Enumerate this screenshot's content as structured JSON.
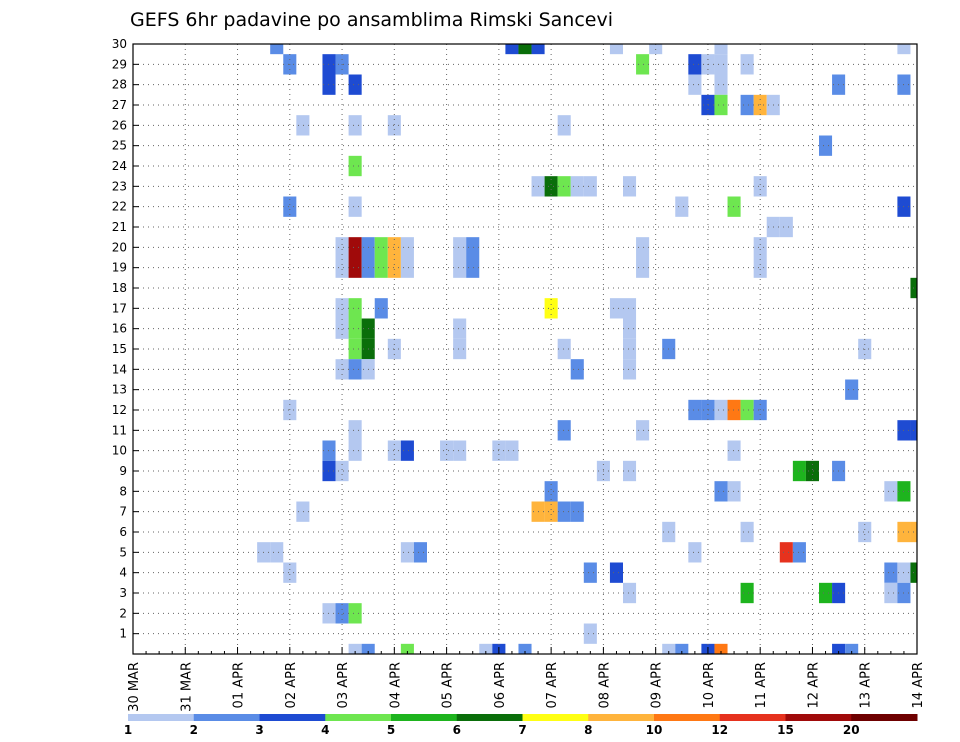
{
  "chart_data": {
    "type": "heatmap",
    "title": "GEFS 6hr padavine po ansamblima Rimski Sancevi",
    "y_ticks": [
      "1",
      "2",
      "3",
      "4",
      "5",
      "6",
      "7",
      "8",
      "9",
      "10",
      "11",
      "12",
      "13",
      "14",
      "15",
      "16",
      "17",
      "18",
      "19",
      "20",
      "21",
      "22",
      "23",
      "24",
      "25",
      "26",
      "27",
      "28",
      "29",
      "30"
    ],
    "x_ticks": [
      "30 MAR",
      "31 MAR",
      "01 APR",
      "02 APR",
      "03 APR",
      "04 APR",
      "05 APR",
      "06 APR",
      "07 APR",
      "08 APR",
      "09 APR",
      "10 APR",
      "11 APR",
      "12 APR",
      "13 APR",
      "14 APR"
    ],
    "x_range_steps": [
      0,
      60
    ],
    "y_range": [
      0,
      30
    ],
    "grid": true,
    "colorbar": {
      "labels": [
        "1",
        "2",
        "3",
        "4",
        "5",
        "6",
        "7",
        "8",
        "10",
        "12",
        "15",
        "20"
      ],
      "colors": [
        "#b4c8f0",
        "#5a8ce6",
        "#1e4bd2",
        "#6ee650",
        "#1eb41e",
        "#0a6e0a",
        "#ffff14",
        "#ffb43c",
        "#ff7814",
        "#e6321e",
        "#a00a0a",
        "#6e0000"
      ]
    },
    "value_encoding": "colorbar class index 0-11",
    "cells": [
      [
        11,
        30,
        1
      ],
      [
        29,
        30,
        2
      ],
      [
        30,
        30,
        5
      ],
      [
        31,
        30,
        2
      ],
      [
        37,
        30,
        0
      ],
      [
        40,
        30,
        0
      ],
      [
        45,
        30,
        0
      ],
      [
        59,
        30,
        0
      ],
      [
        12,
        29,
        1
      ],
      [
        15,
        29,
        2
      ],
      [
        16,
        29,
        1
      ],
      [
        39,
        29,
        3
      ],
      [
        43,
        29,
        2
      ],
      [
        44,
        29,
        0
      ],
      [
        45,
        29,
        0
      ],
      [
        47,
        29,
        0
      ],
      [
        15,
        28,
        2
      ],
      [
        17,
        28,
        2
      ],
      [
        43,
        28,
        0
      ],
      [
        45,
        28,
        0
      ],
      [
        54,
        28,
        1
      ],
      [
        59,
        28,
        1
      ],
      [
        44,
        27,
        2
      ],
      [
        45,
        27,
        3
      ],
      [
        47,
        27,
        1
      ],
      [
        48,
        27,
        7
      ],
      [
        49,
        27,
        0
      ],
      [
        13,
        26,
        0
      ],
      [
        17,
        26,
        0
      ],
      [
        20,
        26,
        0
      ],
      [
        33,
        26,
        0
      ],
      [
        53,
        25,
        1
      ],
      [
        17,
        24,
        3
      ],
      [
        31,
        23,
        0
      ],
      [
        32,
        23,
        5
      ],
      [
        33,
        23,
        3
      ],
      [
        34,
        23,
        0
      ],
      [
        35,
        23,
        0
      ],
      [
        38,
        23,
        0
      ],
      [
        48,
        23,
        0
      ],
      [
        12,
        22,
        1
      ],
      [
        17,
        22,
        0
      ],
      [
        42,
        22,
        0
      ],
      [
        46,
        22,
        3
      ],
      [
        59,
        22,
        2
      ],
      [
        49,
        21,
        0
      ],
      [
        50,
        21,
        0
      ],
      [
        16,
        20,
        0
      ],
      [
        17,
        20,
        10
      ],
      [
        18,
        20,
        1
      ],
      [
        19,
        20,
        3
      ],
      [
        20,
        20,
        7
      ],
      [
        21,
        20,
        0
      ],
      [
        25,
        20,
        0
      ],
      [
        26,
        20,
        1
      ],
      [
        39,
        20,
        0
      ],
      [
        48,
        20,
        0
      ],
      [
        16,
        19,
        0
      ],
      [
        17,
        19,
        10
      ],
      [
        18,
        19,
        1
      ],
      [
        19,
        19,
        3
      ],
      [
        20,
        19,
        7
      ],
      [
        21,
        19,
        0
      ],
      [
        25,
        19,
        0
      ],
      [
        26,
        19,
        1
      ],
      [
        39,
        19,
        0
      ],
      [
        48,
        19,
        0
      ],
      [
        60,
        18,
        5
      ],
      [
        16,
        17,
        0
      ],
      [
        17,
        17,
        3
      ],
      [
        19,
        17,
        1
      ],
      [
        32,
        17,
        6
      ],
      [
        37,
        17,
        0
      ],
      [
        38,
        17,
        0
      ],
      [
        16,
        16,
        0
      ],
      [
        17,
        16,
        3
      ],
      [
        18,
        16,
        5
      ],
      [
        25,
        16,
        0
      ],
      [
        38,
        16,
        0
      ],
      [
        17,
        15,
        3
      ],
      [
        18,
        15,
        5
      ],
      [
        20,
        15,
        0
      ],
      [
        25,
        15,
        0
      ],
      [
        33,
        15,
        0
      ],
      [
        38,
        15,
        0
      ],
      [
        41,
        15,
        1
      ],
      [
        56,
        15,
        0
      ],
      [
        16,
        14,
        0
      ],
      [
        17,
        14,
        1
      ],
      [
        18,
        14,
        0
      ],
      [
        34,
        14,
        1
      ],
      [
        38,
        14,
        0
      ],
      [
        55,
        13,
        1
      ],
      [
        12,
        12,
        0
      ],
      [
        43,
        12,
        1
      ],
      [
        44,
        12,
        1
      ],
      [
        45,
        12,
        0
      ],
      [
        46,
        12,
        8
      ],
      [
        47,
        12,
        3
      ],
      [
        48,
        12,
        1
      ],
      [
        17,
        11,
        0
      ],
      [
        33,
        11,
        1
      ],
      [
        39,
        11,
        0
      ],
      [
        59,
        11,
        2
      ],
      [
        60,
        11,
        2
      ],
      [
        15,
        10,
        1
      ],
      [
        17,
        10,
        0
      ],
      [
        20,
        10,
        0
      ],
      [
        21,
        10,
        2
      ],
      [
        24,
        10,
        0
      ],
      [
        25,
        10,
        0
      ],
      [
        28,
        10,
        0
      ],
      [
        29,
        10,
        0
      ],
      [
        46,
        10,
        0
      ],
      [
        15,
        9,
        2
      ],
      [
        16,
        9,
        0
      ],
      [
        36,
        9,
        0
      ],
      [
        38,
        9,
        0
      ],
      [
        51,
        9,
        4
      ],
      [
        52,
        9,
        5
      ],
      [
        54,
        9,
        1
      ],
      [
        32,
        8,
        1
      ],
      [
        45,
        8,
        1
      ],
      [
        46,
        8,
        0
      ],
      [
        58,
        8,
        0
      ],
      [
        59,
        8,
        4
      ],
      [
        13,
        7,
        0
      ],
      [
        31,
        7,
        7
      ],
      [
        32,
        7,
        7
      ],
      [
        33,
        7,
        1
      ],
      [
        34,
        7,
        1
      ],
      [
        41,
        6,
        0
      ],
      [
        47,
        6,
        0
      ],
      [
        56,
        6,
        0
      ],
      [
        59,
        6,
        7
      ],
      [
        60,
        6,
        7
      ],
      [
        10,
        5,
        0
      ],
      [
        11,
        5,
        0
      ],
      [
        21,
        5,
        0
      ],
      [
        22,
        5,
        1
      ],
      [
        43,
        5,
        0
      ],
      [
        50,
        5,
        9
      ],
      [
        51,
        5,
        1
      ],
      [
        12,
        4,
        0
      ],
      [
        35,
        4,
        1
      ],
      [
        37,
        4,
        2
      ],
      [
        58,
        4,
        1
      ],
      [
        59,
        4,
        0
      ],
      [
        60,
        4,
        5
      ],
      [
        38,
        3,
        0
      ],
      [
        47,
        3,
        4
      ],
      [
        53,
        3,
        4
      ],
      [
        54,
        3,
        2
      ],
      [
        58,
        3,
        0
      ],
      [
        59,
        3,
        1
      ],
      [
        15,
        2,
        0
      ],
      [
        16,
        2,
        1
      ],
      [
        17,
        2,
        3
      ],
      [
        35,
        1,
        0
      ],
      [
        17,
        0,
        0
      ],
      [
        18,
        0,
        1
      ],
      [
        21,
        0,
        3
      ],
      [
        27,
        0,
        0
      ],
      [
        28,
        0,
        2
      ],
      [
        30,
        0,
        1
      ],
      [
        41,
        0,
        0
      ],
      [
        42,
        0,
        1
      ],
      [
        44,
        0,
        2
      ],
      [
        45,
        0,
        8
      ],
      [
        54,
        0,
        2
      ],
      [
        55,
        0,
        1
      ]
    ]
  }
}
